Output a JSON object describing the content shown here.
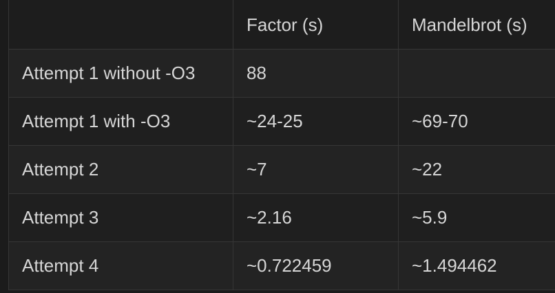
{
  "table": {
    "headers": [
      "",
      "Factor (s)",
      "Mandelbrot (s)"
    ],
    "rows": [
      [
        "Attempt 1 without -O3",
        "88",
        ""
      ],
      [
        "Attempt 1 with -O3",
        "~24-25",
        "~69-70"
      ],
      [
        "Attempt 2",
        "~7",
        "~22"
      ],
      [
        "Attempt 3",
        "~2.16",
        "~5.9"
      ],
      [
        "Attempt 4",
        "~0.722459",
        "~1.494462"
      ]
    ]
  }
}
